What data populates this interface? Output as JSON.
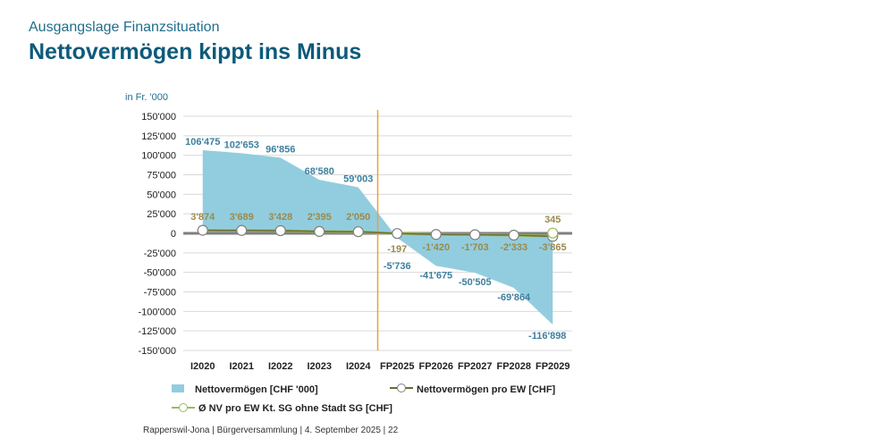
{
  "header": {
    "subtitle": "Ausgangslage Finanzsituation",
    "title": "Nettovermögen kippt ins Minus"
  },
  "footer": "Rapperswil-Jona | Bürgerversammlung | 4. September 2025 | 22",
  "chart_data": {
    "type": "area",
    "unit_label": "in Fr. '000",
    "categories": [
      "I2020",
      "I2021",
      "I2022",
      "I2023",
      "I2024",
      "FP2025",
      "FP2026",
      "FP2027",
      "FP2028",
      "FP2029"
    ],
    "ylim": [
      -150000,
      150000
    ],
    "yticks": [
      150000,
      125000,
      100000,
      75000,
      50000,
      25000,
      0,
      -25000,
      -50000,
      -75000,
      -100000,
      -125000,
      -150000
    ],
    "ytick_labels": [
      "150'000",
      "125'000",
      "100'000",
      "75'000",
      "50'000",
      "25'000",
      "0",
      "-25'000",
      "-50'000",
      "-75'000",
      "-100'000",
      "-125'000",
      "-150'000"
    ],
    "divider_after_category": "I2024",
    "grid": true,
    "legend_position": "bottom",
    "series": [
      {
        "name": "Nettovermögen [CHF '000]",
        "kind": "area",
        "color": "#92cddf",
        "values": [
          106475,
          102653,
          96856,
          68580,
          59003,
          -5736,
          -41675,
          -50505,
          -69864,
          -116898
        ],
        "labels": [
          "106'475",
          "102'653",
          "96'856",
          "68'580",
          "59'003",
          "-5'736",
          "-41'675",
          "-50'505",
          "-69'864",
          "-116'898"
        ]
      },
      {
        "name": "Nettovermögen pro EW [CHF]",
        "kind": "line",
        "color": "#6b6a3a",
        "values": [
          3874,
          3689,
          3428,
          2395,
          2050,
          -197,
          -1420,
          -1703,
          -2333,
          -3865
        ],
        "labels": [
          "3'874",
          "3'689",
          "3'428",
          "2'395",
          "2'050",
          "-197",
          "-1'420",
          "-1'703",
          "-2'333",
          "-3'865"
        ]
      },
      {
        "name": "Ø NV pro EW Kt. SG ohne Stadt SG  [CHF]",
        "kind": "line",
        "color": "#9bbb59",
        "values": [
          null,
          null,
          null,
          null,
          null,
          null,
          null,
          null,
          null,
          345
        ],
        "labels": [
          "",
          "",
          "",
          "",
          "",
          "",
          "",
          "",
          "",
          "345"
        ]
      }
    ]
  }
}
